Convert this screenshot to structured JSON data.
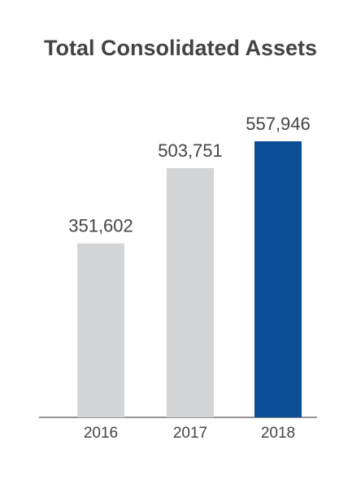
{
  "chart_data": {
    "type": "bar",
    "title": "Total Consolidated Assets",
    "categories": [
      "2016",
      "2017",
      "2018"
    ],
    "values": [
      351602,
      503751,
      557946
    ],
    "value_labels": [
      "351,602",
      "503,751",
      "557,946"
    ],
    "xlabel": "",
    "ylabel": "",
    "ylim": [
      0,
      600000
    ],
    "grid": false,
    "legend": "none",
    "colors": {
      "default_bar": "#d3d4d5",
      "highlight_bar": "#0c4e96",
      "axis": "#555555",
      "text": "#444444"
    },
    "highlight_index": 2
  }
}
